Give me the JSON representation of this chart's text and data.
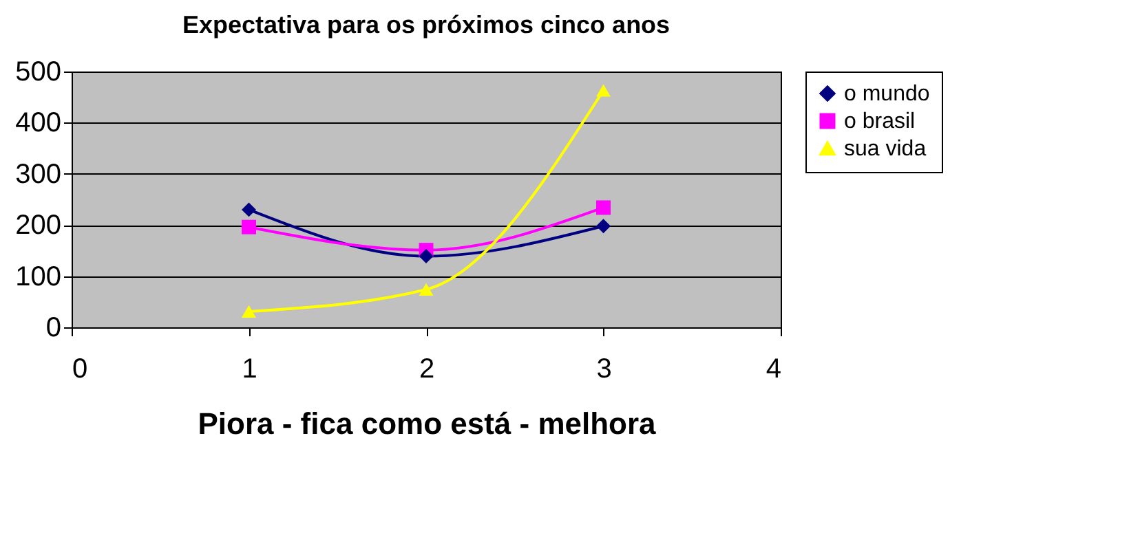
{
  "chart_data": {
    "type": "line",
    "title": "Expectativa para os próximos cinco anos",
    "xlabel": "Piora - fica como está - melhora",
    "x": [
      1,
      2,
      3
    ],
    "series": [
      {
        "name": "o mundo",
        "color": "#000080",
        "marker": "diamond",
        "values": [
          230,
          139,
          198
        ]
      },
      {
        "name": "o brasil",
        "color": "#ff00ff",
        "marker": "square",
        "values": [
          196,
          151,
          234
        ]
      },
      {
        "name": "sua vida",
        "color": "#ffff00",
        "marker": "triangle",
        "values": [
          31,
          74,
          463
        ]
      }
    ],
    "xlim": [
      0,
      4
    ],
    "xticks": [
      0,
      1,
      2,
      3,
      4
    ],
    "ylim": [
      0,
      500
    ],
    "yticks": [
      0,
      100,
      200,
      300,
      400,
      500
    ],
    "grid": "y",
    "legend": "right",
    "line_style": "solid"
  }
}
